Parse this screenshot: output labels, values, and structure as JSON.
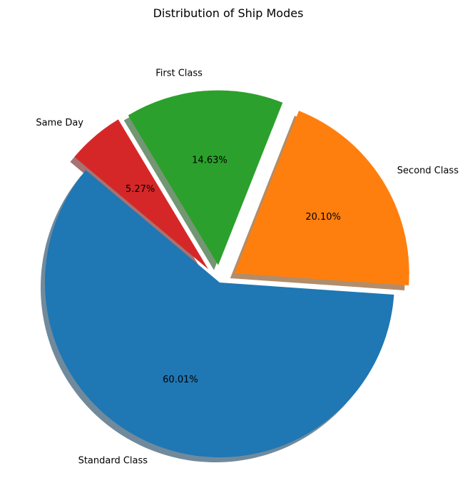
{
  "chart_data": {
    "type": "pie",
    "title": "Distribution of Ship Modes",
    "slices": [
      {
        "label": "Standard Class",
        "value": 60.01,
        "pct_text": "60.01%",
        "color": "#1f77b4",
        "explode": 0
      },
      {
        "label": "Second Class",
        "value": 20.1,
        "pct_text": "20.10%",
        "color": "#ff7f0e",
        "explode": 0.1
      },
      {
        "label": "First Class",
        "value": 14.63,
        "pct_text": "14.63%",
        "color": "#2ca02c",
        "explode": 0.1
      },
      {
        "label": "Same Day",
        "value": 5.27,
        "pct_text": "5.27%",
        "color": "#d62728",
        "explode": 0.1
      }
    ],
    "start_angle_deg": 140,
    "direction": "counterclockwise",
    "shadow": true,
    "legend": false
  }
}
